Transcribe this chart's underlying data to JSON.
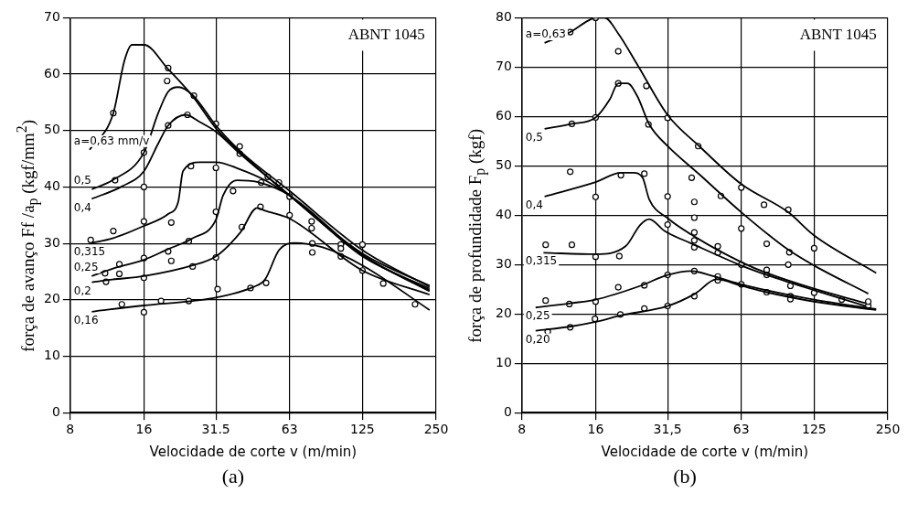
{
  "chart_data": [
    {
      "type": "line",
      "ylabel": "força de avanço  Ff /a$_{p}$ (kgf/mm$^{2}$)",
      "xlabel": "Velocidade de corte v (m/min)",
      "annotations": [
        "ABNT 1045",
        "(a)"
      ],
      "log": "x",
      "xlim": [
        8,
        250
      ],
      "xticks": [
        8,
        16,
        {
          "value": 31.5,
          "label": "31.5"
        },
        63,
        125,
        250
      ],
      "ylim": [
        0,
        70
      ],
      "yticks": [
        0,
        10,
        20,
        30,
        40,
        50,
        60,
        70
      ],
      "grid": true,
      "legend": false,
      "marker": "none",
      "series": [
        {
          "name": "a=0,63 mm/v",
          "color": "#000000",
          "x": [
            9.6,
            12.0,
            13.3,
            14.3,
            16,
            20.1,
            25.3,
            31.5,
            39.7,
            63,
            125,
            235
          ],
          "values": [
            46.6,
            53.1,
            62.3,
            65.2,
            65.2,
            60.9,
            56.1,
            50.4,
            46.1,
            38.5,
            28.2,
            22.5
          ]
        },
        {
          "name": "0,5",
          "color": "#000000",
          "x": [
            9.8,
            11.9,
            16,
            18.3,
            20.1,
            22.1,
            25.3,
            31.5,
            39.7,
            63,
            125,
            235
          ],
          "values": [
            39.6,
            41.2,
            46.1,
            53.1,
            56.9,
            57.7,
            56.3,
            50.9,
            46.3,
            39.3,
            28.8,
            22.3
          ]
        },
        {
          "name": "0,4",
          "color": "#000000",
          "x": [
            9.8,
            13.0,
            16,
            18.3,
            20.1,
            23.7,
            27.1,
            31.5,
            39.7,
            63,
            125,
            235
          ],
          "values": [
            37.9,
            40.1,
            42.8,
            47.7,
            50.9,
            52.8,
            51.5,
            49.8,
            45.8,
            38.5,
            27.9,
            21.7
          ]
        },
        {
          "name": "0,315",
          "color": "#000000",
          "x": [
            9.8,
            11.9,
            16,
            20.1,
            22.1,
            23.1,
            27.1,
            31.5,
            39.7,
            50,
            63,
            125,
            235
          ],
          "values": [
            30.1,
            30.9,
            33.1,
            35.2,
            37.4,
            42.8,
            44.4,
            44.4,
            43.1,
            41.2,
            38.5,
            27.7,
            22.0
          ]
        },
        {
          "name": "0,25",
          "color": "#000000",
          "x": [
            9.8,
            11.9,
            16,
            20.1,
            25.3,
            31.5,
            33.7,
            38.4,
            46.4,
            63,
            125,
            235
          ],
          "values": [
            24.2,
            25.5,
            27.1,
            29.0,
            30.9,
            34.2,
            38.5,
            41.2,
            40.9,
            38.5,
            27.9,
            21.5
          ]
        },
        {
          "name": "0,2",
          "color": "#000000",
          "x": [
            9.8,
            11.9,
            16,
            25.3,
            31.5,
            39.7,
            46.4,
            50,
            63,
            125,
            235
          ],
          "values": [
            23.1,
            23.6,
            24.2,
            26.1,
            27.7,
            32.0,
            36.3,
            35.8,
            34.4,
            25.2,
            20.9
          ]
        },
        {
          "name": "0,16",
          "color": "#000000",
          "x": [
            9.8,
            16,
            25.3,
            31.5,
            44.9,
            50,
            57,
            66,
            86,
            125,
            235
          ],
          "values": [
            17.9,
            19.0,
            19.8,
            20.4,
            22.3,
            23.6,
            28.8,
            30.1,
            29.3,
            26.1,
            18.2
          ]
        },
        {
          "type": "scatter",
          "marker": "circle",
          "color": "#000000",
          "x": [
            12.0,
            20.1,
            19.9,
            25.6,
            31.5,
            39.4,
            39.4,
            16,
            20.1,
            24.1,
            12.2,
            16,
            9.7,
            12.0,
            16,
            20.7,
            24.9,
            31.5,
            31.5,
            37.0,
            48.2,
            51.3,
            57,
            63,
            63,
            77.5,
            77.5,
            102,
            102,
            125,
            102,
            12.7,
            12.7,
            11.1,
            11.2,
            16,
            16,
            20.1,
            20.7,
            24.4,
            25.3,
            31.5,
            40.2,
            47.9,
            13.0,
            16,
            18.8,
            24.4,
            32.0,
            43.6,
            50.5,
            78,
            78,
            125,
            152,
            205
          ],
          "values": [
            53.1,
            61.1,
            58.8,
            56.2,
            51.2,
            47.2,
            45.9,
            46.1,
            50.9,
            52.8,
            41.2,
            40.0,
            30.6,
            32.2,
            33.9,
            33.7,
            43.7,
            43.4,
            35.6,
            39.3,
            40.8,
            41.8,
            40.8,
            38.3,
            35.0,
            33.9,
            32.7,
            29.8,
            29.1,
            29.8,
            27.7,
            26.3,
            24.6,
            24.7,
            23.2,
            27.4,
            23.9,
            28.6,
            26.9,
            30.4,
            25.9,
            27.5,
            32.9,
            36.5,
            19.2,
            17.8,
            19.8,
            19.8,
            21.9,
            22.1,
            23.0,
            30.0,
            28.4,
            25.2,
            22.9,
            19.2
          ]
        }
      ]
    },
    {
      "type": "line",
      "ylabel": "força de profundidade F$_{p}$ (kgf)",
      "xlabel": "Velocidade de corte v (m/min)",
      "annotations": [
        "ABNT 1045",
        "(b)"
      ],
      "log": "x",
      "xlim": [
        8,
        250
      ],
      "xticks": [
        8,
        16,
        {
          "value": 31.5,
          "label": "31,5"
        },
        63,
        125,
        250
      ],
      "ylim": [
        0,
        80
      ],
      "yticks": [
        0,
        10,
        20,
        30,
        40,
        50,
        60,
        70,
        80
      ],
      "grid": true,
      "legend": false,
      "marker": "none",
      "series": [
        {
          "name": "a=0,63",
          "color": "#000000",
          "x": [
            9.9,
            12.6,
            14.9,
            16,
            17.4,
            19.8,
            23.7,
            31.5,
            42.4,
            63,
            98,
            125,
            224
          ],
          "values": [
            74.9,
            77.1,
            79.4,
            80,
            80,
            76.8,
            70.5,
            60.3,
            54.0,
            46.3,
            40.6,
            35.9,
            28.3
          ]
        },
        {
          "name": "0,5",
          "color": "#000000",
          "x": [
            9.9,
            12.8,
            16,
            18.3,
            19.8,
            21.6,
            23.7,
            26.5,
            31.5,
            42.4,
            63,
            98,
            125,
            208
          ],
          "values": [
            57.5,
            58.5,
            59.8,
            63.5,
            66.7,
            66.7,
            64.1,
            58.4,
            54.0,
            48.3,
            40.6,
            33.0,
            29.8,
            24.1
          ]
        },
        {
          "name": "0,4",
          "color": "#000000",
          "x": [
            9.9,
            16,
            20.3,
            22.8,
            24.9,
            26.5,
            31.5,
            40.8,
            63,
            80,
            125,
            203
          ],
          "values": [
            43.8,
            46.7,
            48.6,
            48.6,
            47.6,
            43.2,
            39.4,
            35.6,
            30.5,
            28.3,
            25.1,
            22.2
          ]
        },
        {
          "name": "0,315",
          "color": "#000000",
          "x": [
            9.8,
            16,
            21.2,
            24.4,
            26.5,
            30.6,
            39.3,
            63,
            80,
            125,
            203
          ],
          "values": [
            32.4,
            32.1,
            33.7,
            38.1,
            39.2,
            36.8,
            34.3,
            29.8,
            27.9,
            24.8,
            21.6
          ]
        },
        {
          "name": "0,25",
          "color": "#000000",
          "x": [
            9.1,
            12.8,
            16,
            24.4,
            31.5,
            39.3,
            48.8,
            63,
            80,
            125,
            224
          ],
          "values": [
            21.3,
            22.2,
            22.9,
            25.7,
            27.9,
            28.7,
            27.6,
            26.0,
            24.8,
            22.9,
            21.0
          ]
        },
        {
          "name": "0,20",
          "color": "#000000",
          "x": [
            9.1,
            12.8,
            16,
            20.3,
            31.5,
            40.8,
            49.9,
            63,
            80,
            125,
            224
          ],
          "values": [
            16.6,
            17.5,
            18.4,
            19.7,
            21.6,
            24.1,
            27.0,
            25.7,
            24.4,
            22.5,
            20.8
          ]
        },
        {
          "type": "scatter",
          "marker": "circle",
          "color": "#000000",
          "x": [
            12.6,
            16,
            19.8,
            25.8,
            31.5,
            42,
            52,
            63,
            78,
            98,
            125,
            12.8,
            16,
            19.8,
            26.3,
            39.5,
            40.5,
            40.5,
            63,
            80,
            99,
            98,
            125,
            162,
            12.6,
            20.3,
            25.3,
            16,
            31.5,
            31.5,
            40.5,
            40.5,
            40.5,
            50.5,
            50.5,
            63,
            80,
            80,
            100,
            10.0,
            12.8,
            16,
            20.0,
            10.0,
            12.5,
            16,
            19.8,
            25.3,
            31.5,
            40.5,
            50.5,
            63,
            80,
            100,
            100,
            10.2,
            12.6,
            15.9,
            20.2,
            25.3,
            31.5,
            40.5,
            50.5,
            208,
            208
          ],
          "values": [
            77.1,
            80,
            73.2,
            66.2,
            59.7,
            54.0,
            43.9,
            45.6,
            42.1,
            41.1,
            33.3,
            58.5,
            59.8,
            66.7,
            58.4,
            47.6,
            42.7,
            39.5,
            37.3,
            34.2,
            32.5,
            30.0,
            24.3,
            22.9,
            48.8,
            48.1,
            48.4,
            43.7,
            43.8,
            38.1,
            36.5,
            34.9,
            33.5,
            33.7,
            32.4,
            30.0,
            28.9,
            27.9,
            25.7,
            34.0,
            34.0,
            31.6,
            31.7,
            22.7,
            22.0,
            22.5,
            25.4,
            25.8,
            27.9,
            28.7,
            27.6,
            26.0,
            24.4,
            23.6,
            23.0,
            16.4,
            17.3,
            19.0,
            19.9,
            21.1,
            21.6,
            23.6,
            26.8,
            21.6,
            22.5
          ]
        }
      ]
    }
  ]
}
